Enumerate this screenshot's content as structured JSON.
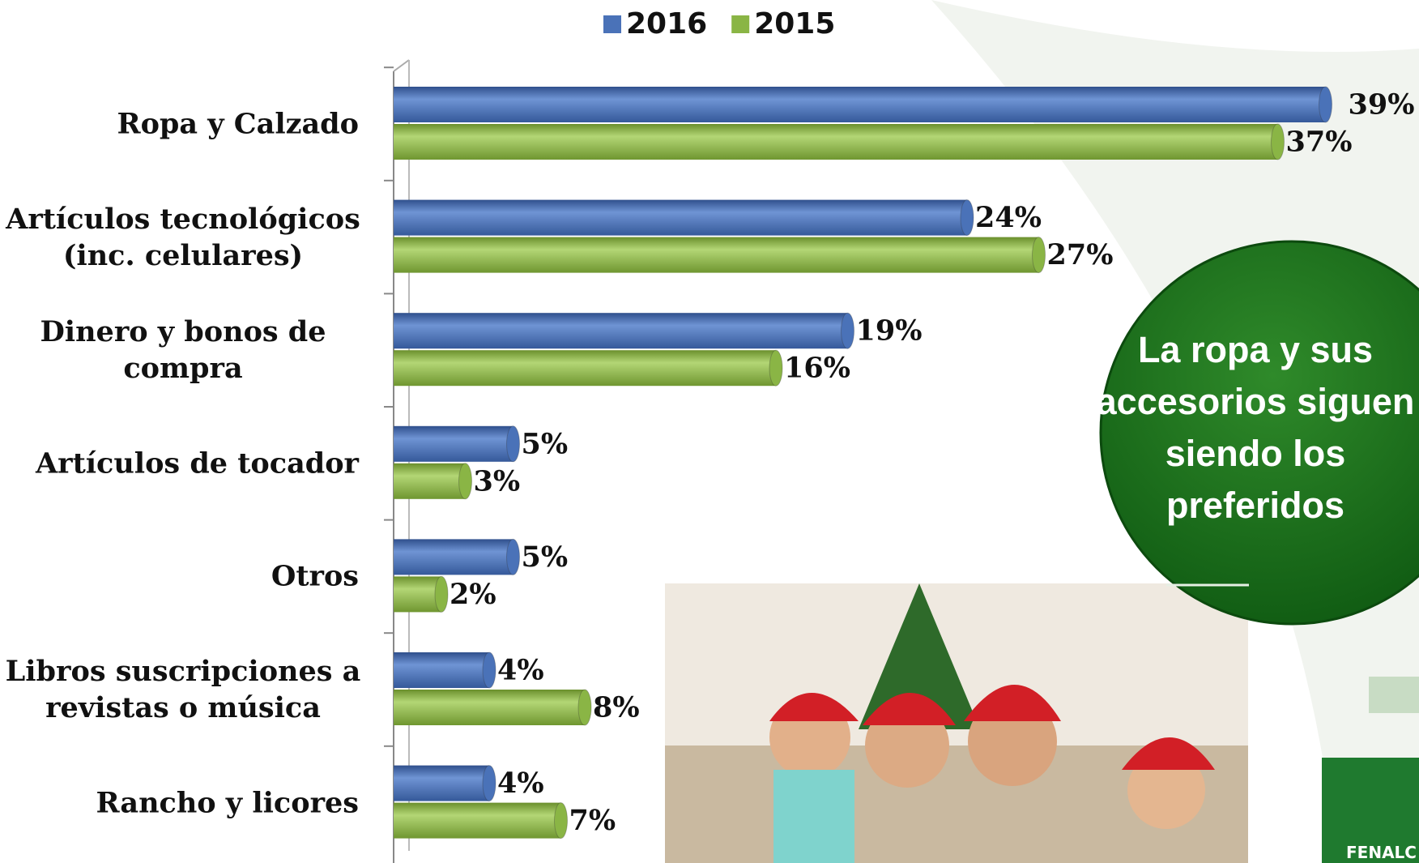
{
  "chart_data": {
    "type": "barh",
    "categories": [
      "Ropa y Calzado",
      "Artículos tecnológicos\n(inc. celulares)",
      "Dinero y bonos de\ncompra",
      "Artículos de tocador",
      "Otros",
      "Libros suscripciones a\nrevistas o música",
      "Rancho y licores"
    ],
    "series": [
      {
        "name": "2016",
        "color": "#4a72b8",
        "values": [
          39,
          24,
          19,
          5,
          5,
          4,
          4
        ],
        "value_labels": [
          "39%",
          "24%",
          "19%",
          "5%",
          "5%",
          "4%",
          "4%"
        ]
      },
      {
        "name": "2015",
        "color": "#8ab545",
        "values": [
          37,
          27,
          16,
          3,
          2,
          8,
          7
        ],
        "value_labels": [
          "37%",
          "27%",
          "16%",
          "3%",
          "2%",
          "8%",
          "7%"
        ]
      }
    ],
    "xlim": [
      0,
      40
    ],
    "annotation": "La ropa y sus accesorios siguen siendo los preferidos"
  },
  "logo_text": "FENALC"
}
